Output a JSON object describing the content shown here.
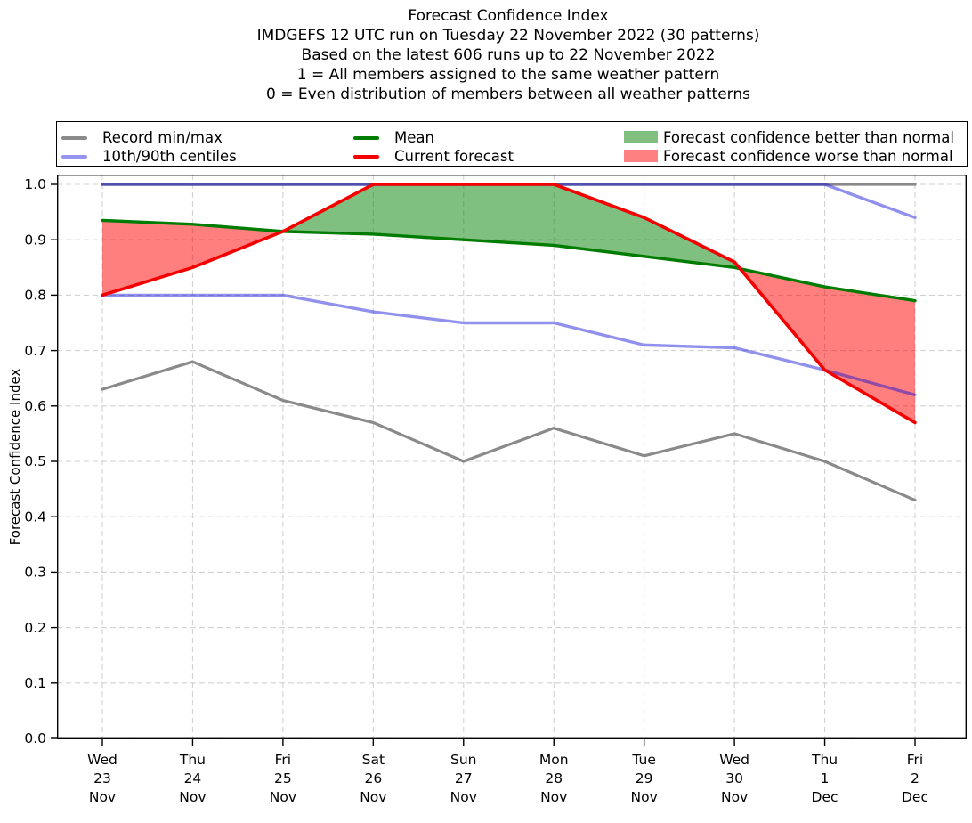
{
  "title": {
    "line1": "Forecast Confidence Index",
    "line2": "IMDGEFS 12 UTC run on Tuesday 22 November 2022 (30 patterns)",
    "line3": "Based on the latest 606 runs up to 22 November 2022",
    "line4": "1 = All members assigned to the same weather pattern",
    "line5": "0 = Even distribution of members between all weather patterns"
  },
  "legend": {
    "items": [
      {
        "label": "Record min/max",
        "type": "line",
        "color": "#8a8a8a"
      },
      {
        "label": "10th/90th centiles",
        "type": "line",
        "color": "#9595ef"
      },
      {
        "label": "Mean",
        "type": "line",
        "color": "#007c00"
      },
      {
        "label": "Current forecast",
        "type": "line",
        "color": "#f40000"
      },
      {
        "label": "Forecast confidence better than normal",
        "type": "patch",
        "color": "#80bf80"
      },
      {
        "label": "Forecast confidence worse than normal",
        "type": "patch",
        "color": "#ff8080"
      }
    ]
  },
  "chart_data": {
    "type": "line",
    "title": "Forecast Confidence Index",
    "xlabel": "",
    "ylabel": "Forecast Confidence Index",
    "ylim": [
      0.0,
      1.0
    ],
    "ytick_step": 0.1,
    "grid": true,
    "legend_position": "top",
    "categories": [
      {
        "day": "Wed",
        "date": "23",
        "month": "Nov"
      },
      {
        "day": "Thu",
        "date": "24",
        "month": "Nov"
      },
      {
        "day": "Fri",
        "date": "25",
        "month": "Nov"
      },
      {
        "day": "Sat",
        "date": "26",
        "month": "Nov"
      },
      {
        "day": "Sun",
        "date": "27",
        "month": "Nov"
      },
      {
        "day": "Mon",
        "date": "28",
        "month": "Nov"
      },
      {
        "day": "Tue",
        "date": "29",
        "month": "Nov"
      },
      {
        "day": "Wed",
        "date": "30",
        "month": "Nov"
      },
      {
        "day": "Thu",
        "date": "1",
        "month": "Dec"
      },
      {
        "day": "Fri",
        "date": "2",
        "month": "Dec"
      }
    ],
    "series": [
      {
        "name": "Record max",
        "color": "#8a8a8a",
        "width": 3.2,
        "values": [
          1.0,
          1.0,
          1.0,
          1.0,
          1.0,
          1.0,
          1.0,
          1.0,
          1.0,
          1.0
        ]
      },
      {
        "name": "Record min",
        "color": "#8a8a8a",
        "width": 3.2,
        "values": [
          0.63,
          0.68,
          0.61,
          0.57,
          0.5,
          0.56,
          0.51,
          0.55,
          0.5,
          0.43
        ]
      },
      {
        "name": "90th centile",
        "color": "rgba(10,10,215,0.45)",
        "width": 3.4,
        "values": [
          1.0,
          1.0,
          1.0,
          1.0,
          1.0,
          1.0,
          1.0,
          1.0,
          1.0,
          0.94
        ]
      },
      {
        "name": "10th centile",
        "color": "rgba(10,10,215,0.45)",
        "width": 3.4,
        "values": [
          0.8,
          0.8,
          0.8,
          0.77,
          0.75,
          0.75,
          0.71,
          0.705,
          0.665,
          0.62
        ]
      },
      {
        "name": "Mean",
        "color": "#007c00",
        "width": 3.4,
        "values": [
          0.935,
          0.928,
          0.915,
          0.91,
          0.9,
          0.89,
          0.87,
          0.85,
          0.815,
          0.79
        ]
      },
      {
        "name": "Current forecast",
        "color": "#f40000",
        "width": 3.6,
        "values": [
          0.8,
          0.85,
          0.915,
          1.0,
          1.0,
          1.0,
          0.94,
          0.86,
          0.665,
          0.57
        ]
      }
    ],
    "fills": {
      "between": [
        "Current forecast",
        "Mean"
      ],
      "better_than_normal_color": "rgba(0,128,0,0.5)",
      "worse_than_normal_color": "rgba(255,0,0,0.5)"
    }
  }
}
